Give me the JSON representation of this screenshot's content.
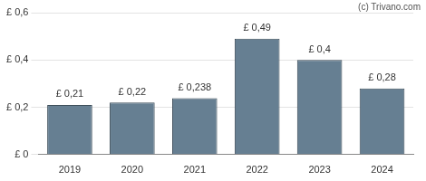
{
  "chart_data": {
    "type": "bar",
    "annotation": "(c) Trivano.com",
    "categories": [
      "2019",
      "2020",
      "2021",
      "2022",
      "2023",
      "2024"
    ],
    "values": [
      0.21,
      0.22,
      0.238,
      0.49,
      0.4,
      0.28
    ],
    "value_labels": [
      "£ 0,21",
      "£ 0,22",
      "£ 0,238",
      "£ 0,49",
      "£ 0,4",
      "£ 0,28"
    ],
    "color": "#667f92",
    "ylim": [
      0,
      0.6
    ],
    "yticks": [
      {
        "value": 0,
        "label": "£ 0"
      },
      {
        "value": 0.2,
        "label": "£ 0,2"
      },
      {
        "value": 0.4,
        "label": "£ 0,4"
      },
      {
        "value": 0.6,
        "label": "£ 0,6"
      }
    ],
    "grid": true,
    "data_labels": true
  }
}
